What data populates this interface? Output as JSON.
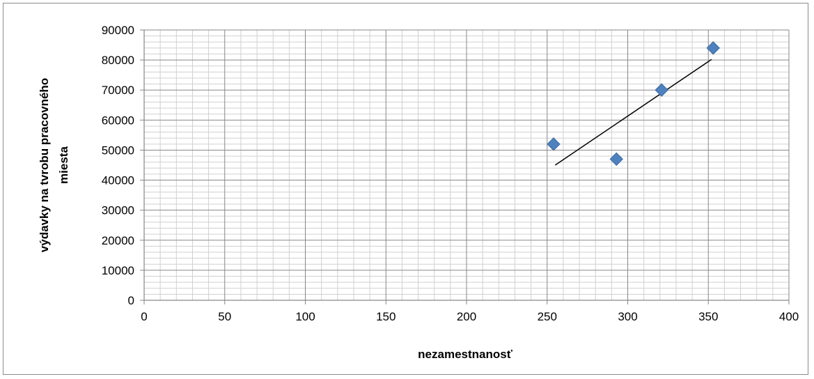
{
  "chart_data": {
    "type": "scatter",
    "xlabel": "nezamestnanosť",
    "ylabel_lines": [
      "výdavky na tvrobu pracovného",
      "miesta"
    ],
    "xlim": [
      0,
      400
    ],
    "ylim": [
      0,
      90000
    ],
    "x_ticks": [
      0,
      50,
      100,
      150,
      200,
      250,
      300,
      350,
      400
    ],
    "y_ticks": [
      0,
      10000,
      20000,
      30000,
      40000,
      50000,
      60000,
      70000,
      80000,
      90000
    ],
    "grid": true,
    "marker": "diamond",
    "series": [
      {
        "points": [
          {
            "x": 254,
            "y": 52000
          },
          {
            "x": 293,
            "y": 47000
          },
          {
            "x": 321,
            "y": 70000
          },
          {
            "x": 353,
            "y": 84000
          }
        ],
        "color": "#4f81bd"
      }
    ],
    "trendline": {
      "type": "linear",
      "from": {
        "x": 255,
        "y": 45000
      },
      "to": {
        "x": 352,
        "y": 80200
      },
      "color": "#000000"
    }
  }
}
